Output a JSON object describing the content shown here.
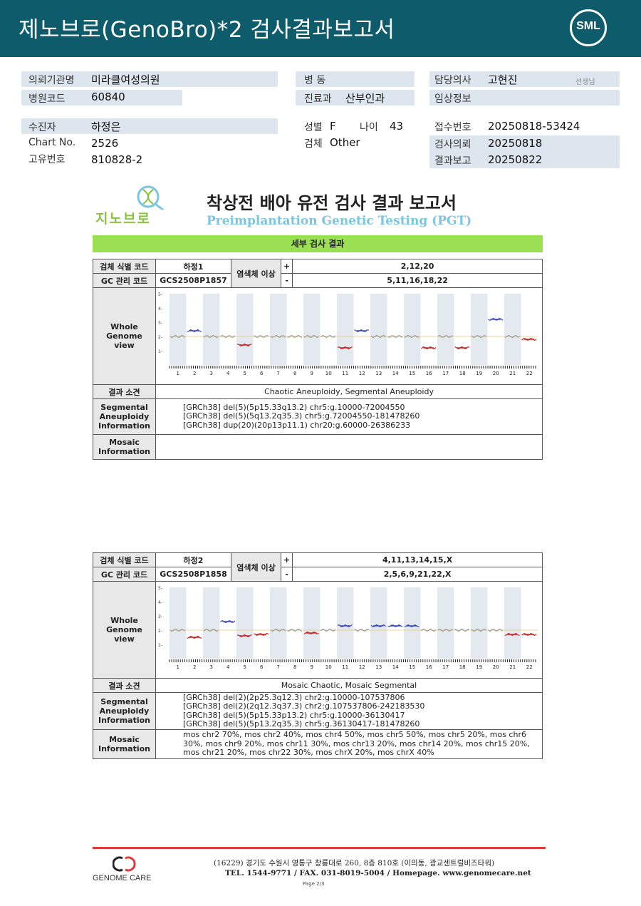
{
  "header": {
    "title": "제노브로(GenoBro)*2 검사결과보고서",
    "logo": "SML"
  },
  "info": {
    "hospital_label": "의뢰기관명",
    "hospital": "미라클여성의원",
    "hosp_code_label": "병원코드",
    "hosp_code": "60840",
    "ward_label": "병  동",
    "ward": "",
    "dept_label": "진료과",
    "dept": "산부인과",
    "doctor_label": "담당의사",
    "doctor": "고현진",
    "doctor_suffix": "선생님",
    "clinical_label": "임상정보",
    "clinical": "",
    "patient_label": "수진자",
    "patient": "하정은",
    "chart_label": "Chart No.",
    "chart": "2526",
    "uid_label": "고유번호",
    "uid": "810828-2",
    "sex_label": "성별",
    "sex": "F",
    "age_label": "나이",
    "age": "43",
    "specimen_label": "검체",
    "specimen": "Other",
    "recv_label": "접수번호",
    "recv": "20250818-53424",
    "req_label": "검사의뢰",
    "req": "20250818",
    "report_label": "결과보고",
    "report": "20250822"
  },
  "report": {
    "logo_text": "지노브로",
    "title": "착상전 배아 유전 검사 결과 보고서",
    "subtitle": "Preimplantation Genetic Testing (PGT)",
    "section": "세부 검사 결과"
  },
  "labels": {
    "sample_code": "검체 식별 코드",
    "gc_code": "GC 관리 코드",
    "chrom_abn": "염색체 이상",
    "plus": "+",
    "minus": "-",
    "whole": "Whole\nGenome\nview",
    "result": "결과 소견",
    "segmental": "Segmental\nAneuploidy\nInformation",
    "mosaic": "Mosaic\nInformation"
  },
  "samples": [
    {
      "id": "하정1",
      "gc": "GCS2508P1857",
      "gain": "2,12,20",
      "loss": "5,11,16,18,22",
      "result": "Chaotic Aneuploidy, Segmental Aneuploidy",
      "segmental": [
        "[GRCh38] del(5)(5p15.33q13.2) chr5:g.10000-72004550",
        "[GRCh38] del(5)(5q13.2q35.3) chr5:g.72004550-181478260",
        "[GRCh38] dup(20)(20p13p11.1) chr20:g.60000-26386233"
      ],
      "mosaic": ""
    },
    {
      "id": "하정2",
      "gc": "GCS2508P1858",
      "gain": "4,11,13,14,15,X",
      "loss": "2,5,6,9,21,22,X",
      "result": "Mosaic Chaotic, Mosaic Segmental",
      "segmental": [
        "[GRCh38] del(2)(2p25.3q12.3) chr2:g.10000-107537806",
        "[GRCh38] del(2)(2q12.3q37.3) chr2:g.107537806-242183530",
        "[GRCh38] del(5)(5p15.33p13.2) chr5:g.10000-36130417",
        "[GRCh38] del(5)(5p13.2q35.3) chr5:g.36130417-181478260"
      ],
      "mosaic": "mos chr2 70%, mos chr2 40%, mos chr4 50%, mos chr5 50%, mos chr5 20%, mos chr6 30%, mos chr9 20%, mos chr11 30%, mos chr13 20%, mos chr14 20%, mos chr15 20%, mos chr21 20%, mos chr22 30%, mos chrX 20%, mos chrX 40%"
    }
  ],
  "chart_data": [
    {
      "type": "line",
      "y_ticks": [
        "5-",
        "4-",
        "3-",
        "2-",
        "1-"
      ],
      "x_labels": [
        "1",
        "2",
        "3",
        "4",
        "5",
        "6",
        "7",
        "8",
        "9",
        "10",
        "11",
        "12",
        "13",
        "14",
        "15",
        "16",
        "17",
        "18",
        "19",
        "20",
        "21",
        "22"
      ],
      "ylim": [
        0,
        5
      ],
      "baseline": 2,
      "segments": [
        {
          "chr": "2",
          "value": 2.4,
          "color": "#3a49c9"
        },
        {
          "chr": "5",
          "value": 1.4,
          "color": "#c22"
        },
        {
          "chr": "11",
          "value": 1.2,
          "color": "#c22"
        },
        {
          "chr": "12",
          "value": 2.4,
          "color": "#3a49c9"
        },
        {
          "chr": "16",
          "value": 1.2,
          "color": "#c22"
        },
        {
          "chr": "18",
          "value": 1.2,
          "color": "#c22"
        },
        {
          "chr": "20",
          "value": 3.2,
          "color": "#3a49c9"
        },
        {
          "chr": "22",
          "value": 1.8,
          "color": "#c22"
        }
      ]
    },
    {
      "type": "line",
      "y_ticks": [
        "5-",
        "4-",
        "3-",
        "2-",
        "1-"
      ],
      "x_labels": [
        "1",
        "2",
        "3",
        "4",
        "5",
        "6",
        "7",
        "8",
        "9",
        "10",
        "11",
        "12",
        "13",
        "14",
        "15",
        "16",
        "17",
        "18",
        "19",
        "20",
        "21",
        "22"
      ],
      "ylim": [
        0,
        5
      ],
      "baseline": 2,
      "segments": [
        {
          "chr": "2",
          "value": 1.5,
          "color": "#c22"
        },
        {
          "chr": "4",
          "value": 2.6,
          "color": "#3a49c9"
        },
        {
          "chr": "5",
          "value": 1.6,
          "color": "#c22"
        },
        {
          "chr": "6",
          "value": 1.7,
          "color": "#c22"
        },
        {
          "chr": "9",
          "value": 1.8,
          "color": "#c22"
        },
        {
          "chr": "11",
          "value": 2.3,
          "color": "#3a49c9"
        },
        {
          "chr": "13",
          "value": 2.3,
          "color": "#3a49c9"
        },
        {
          "chr": "14",
          "value": 2.3,
          "color": "#3a49c9"
        },
        {
          "chr": "15",
          "value": 2.3,
          "color": "#3a49c9"
        },
        {
          "chr": "21",
          "value": 1.7,
          "color": "#c22"
        },
        {
          "chr": "22",
          "value": 1.7,
          "color": "#c22"
        }
      ]
    }
  ],
  "footer": {
    "logo_text": "GENOME CARE",
    "address": "(16229) 경기도 수원시 영통구 창룡대로 260, 8층 810호 (이의동, 광교센트럴비즈타워)",
    "tel": "TEL. 1544-9771 / FAX. 031-8019-5004 / Homepage. www.genomecare.net",
    "page": "Page 2/3"
  }
}
